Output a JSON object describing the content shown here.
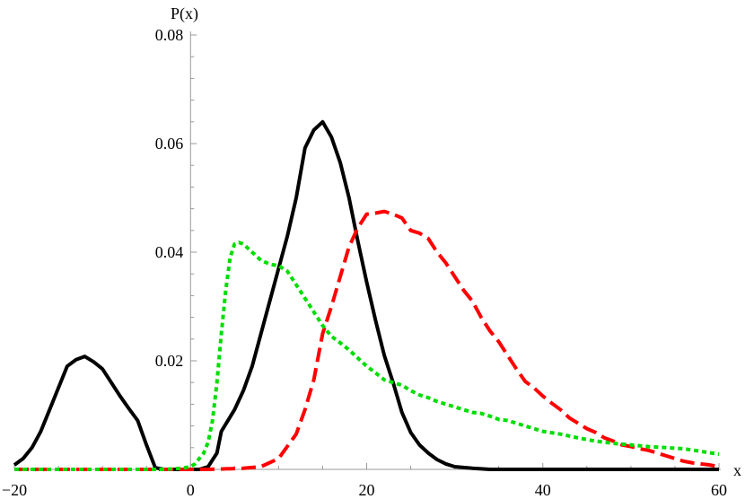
{
  "chart_data": {
    "type": "line",
    "title": "",
    "xlabel": "x",
    "ylabel": "P(x)",
    "xlim": [
      -20,
      60
    ],
    "ylim": [
      0,
      0.08
    ],
    "x_ticks": [
      -20,
      0,
      20,
      40,
      60
    ],
    "x_tick_labels": [
      "−20",
      "0",
      "20",
      "40",
      "60"
    ],
    "y_ticks": [
      0.02,
      0.04,
      0.06,
      0.08
    ],
    "y_tick_labels": [
      "0.02",
      "0.04",
      "0.06",
      "0.08"
    ],
    "grid": false,
    "legend": "none",
    "series": [
      {
        "color": "#000000",
        "style": "solid",
        "points": [
          [
            -20,
            0.0008
          ],
          [
            -19,
            0.002
          ],
          [
            -18,
            0.004
          ],
          [
            -17,
            0.007
          ],
          [
            -16,
            0.011
          ],
          [
            -15,
            0.015
          ],
          [
            -14,
            0.019
          ],
          [
            -13,
            0.0202
          ],
          [
            -12,
            0.0208
          ],
          [
            -11,
            0.0198
          ],
          [
            -10,
            0.0185
          ],
          [
            -9,
            0.016
          ],
          [
            -8,
            0.0135
          ],
          [
            -7,
            0.0112
          ],
          [
            -6,
            0.009
          ],
          [
            -5,
            0.0045
          ],
          [
            -4,
            0.0003
          ],
          [
            -3,
            0.0
          ],
          [
            0,
            0.0
          ],
          [
            1,
            0.0
          ],
          [
            2,
            0.0005
          ],
          [
            3,
            0.003
          ],
          [
            3.5,
            0.007
          ],
          [
            5,
            0.011
          ],
          [
            6,
            0.0145
          ],
          [
            7,
            0.019
          ],
          [
            8,
            0.025
          ],
          [
            9,
            0.031
          ],
          [
            10,
            0.037
          ],
          [
            11,
            0.043
          ],
          [
            12,
            0.05
          ],
          [
            13,
            0.0592
          ],
          [
            14,
            0.0625
          ],
          [
            15,
            0.064
          ],
          [
            16,
            0.0612
          ],
          [
            17,
            0.0565
          ],
          [
            18,
            0.05
          ],
          [
            19,
            0.042
          ],
          [
            20,
            0.0345
          ],
          [
            21,
            0.0275
          ],
          [
            22,
            0.021
          ],
          [
            23,
            0.016
          ],
          [
            24,
            0.0105
          ],
          [
            25,
            0.0068
          ],
          [
            26,
            0.0045
          ],
          [
            27,
            0.003
          ],
          [
            28,
            0.0018
          ],
          [
            29,
            0.001
          ],
          [
            30,
            0.0005
          ],
          [
            32,
            0.0002
          ],
          [
            34,
            0.0
          ],
          [
            60,
            0.0
          ]
        ]
      },
      {
        "color": "#ff0000",
        "style": "dashed",
        "points": [
          [
            -20,
            0.0
          ],
          [
            2,
            0.0
          ],
          [
            3,
            5e-05
          ],
          [
            4,
            0.0001
          ],
          [
            6,
            0.0002
          ],
          [
            8,
            0.0005
          ],
          [
            10,
            0.002
          ],
          [
            12,
            0.0065
          ],
          [
            13,
            0.011
          ],
          [
            14,
            0.0165
          ],
          [
            15,
            0.025
          ],
          [
            16,
            0.03
          ],
          [
            17,
            0.0355
          ],
          [
            18,
            0.041
          ],
          [
            19,
            0.0445
          ],
          [
            20,
            0.047
          ],
          [
            21,
            0.0472
          ],
          [
            22,
            0.0475
          ],
          [
            23,
            0.047
          ],
          [
            24,
            0.0463
          ],
          [
            25,
            0.044
          ],
          [
            26,
            0.0435
          ],
          [
            27,
            0.0425
          ],
          [
            28,
            0.04
          ],
          [
            29,
            0.038
          ],
          [
            30,
            0.0355
          ],
          [
            31,
            0.033
          ],
          [
            32,
            0.031
          ],
          [
            33,
            0.028
          ],
          [
            34,
            0.0255
          ],
          [
            35,
            0.0235
          ],
          [
            36,
            0.021
          ],
          [
            37,
            0.0185
          ],
          [
            38,
            0.0162
          ],
          [
            39,
            0.015
          ],
          [
            40,
            0.0135
          ],
          [
            41,
            0.0122
          ],
          [
            42,
            0.011
          ],
          [
            43,
            0.0095
          ],
          [
            44,
            0.0085
          ],
          [
            45,
            0.0075
          ],
          [
            46,
            0.0068
          ],
          [
            47,
            0.0058
          ],
          [
            48,
            0.0052
          ],
          [
            49,
            0.0045
          ],
          [
            50,
            0.0042
          ],
          [
            51,
            0.0038
          ],
          [
            52,
            0.0035
          ],
          [
            53,
            0.003
          ],
          [
            54,
            0.0025
          ],
          [
            55,
            0.002
          ],
          [
            56,
            0.0015
          ],
          [
            57,
            0.0012
          ],
          [
            58,
            0.001
          ],
          [
            59,
            0.0008
          ],
          [
            60,
            0.0005
          ]
        ]
      },
      {
        "color": "#00dd00",
        "style": "dotted",
        "points": [
          [
            -20,
            0.0
          ],
          [
            -3,
            0.0
          ],
          [
            -1,
            0.0002
          ],
          [
            0,
            0.0005
          ],
          [
            0.5,
            0.001
          ],
          [
            1,
            0.002
          ],
          [
            1.5,
            0.003
          ],
          [
            2,
            0.005
          ],
          [
            2.5,
            0.009
          ],
          [
            3,
            0.016
          ],
          [
            3.5,
            0.025
          ],
          [
            4,
            0.033
          ],
          [
            4.5,
            0.039
          ],
          [
            5,
            0.0415
          ],
          [
            5.5,
            0.0418
          ],
          [
            6,
            0.0415
          ],
          [
            7,
            0.04
          ],
          [
            8,
            0.0385
          ],
          [
            9,
            0.0378
          ],
          [
            10,
            0.0375
          ],
          [
            11,
            0.0365
          ],
          [
            12,
            0.034
          ],
          [
            13,
            0.0315
          ],
          [
            14,
            0.029
          ],
          [
            15,
            0.0265
          ],
          [
            16,
            0.0245
          ],
          [
            17,
            0.0233
          ],
          [
            18,
            0.022
          ],
          [
            19,
            0.0205
          ],
          [
            20,
            0.019
          ],
          [
            21,
            0.0178
          ],
          [
            22,
            0.0165
          ],
          [
            23,
            0.016
          ],
          [
            24,
            0.0155
          ],
          [
            25,
            0.0145
          ],
          [
            26,
            0.0137
          ],
          [
            27,
            0.0132
          ],
          [
            28,
            0.0125
          ],
          [
            29,
            0.012
          ],
          [
            30,
            0.0115
          ],
          [
            31,
            0.011
          ],
          [
            32,
            0.0105
          ],
          [
            33,
            0.0103
          ],
          [
            34,
            0.0098
          ],
          [
            35,
            0.0092
          ],
          [
            36,
            0.009
          ],
          [
            37,
            0.0085
          ],
          [
            38,
            0.008
          ],
          [
            40,
            0.007
          ],
          [
            42,
            0.0065
          ],
          [
            44,
            0.0058
          ],
          [
            46,
            0.0052
          ],
          [
            48,
            0.0048
          ],
          [
            50,
            0.0045
          ],
          [
            52,
            0.0042
          ],
          [
            54,
            0.004
          ],
          [
            56,
            0.0038
          ],
          [
            58,
            0.0033
          ],
          [
            60,
            0.0028
          ]
        ]
      }
    ]
  }
}
